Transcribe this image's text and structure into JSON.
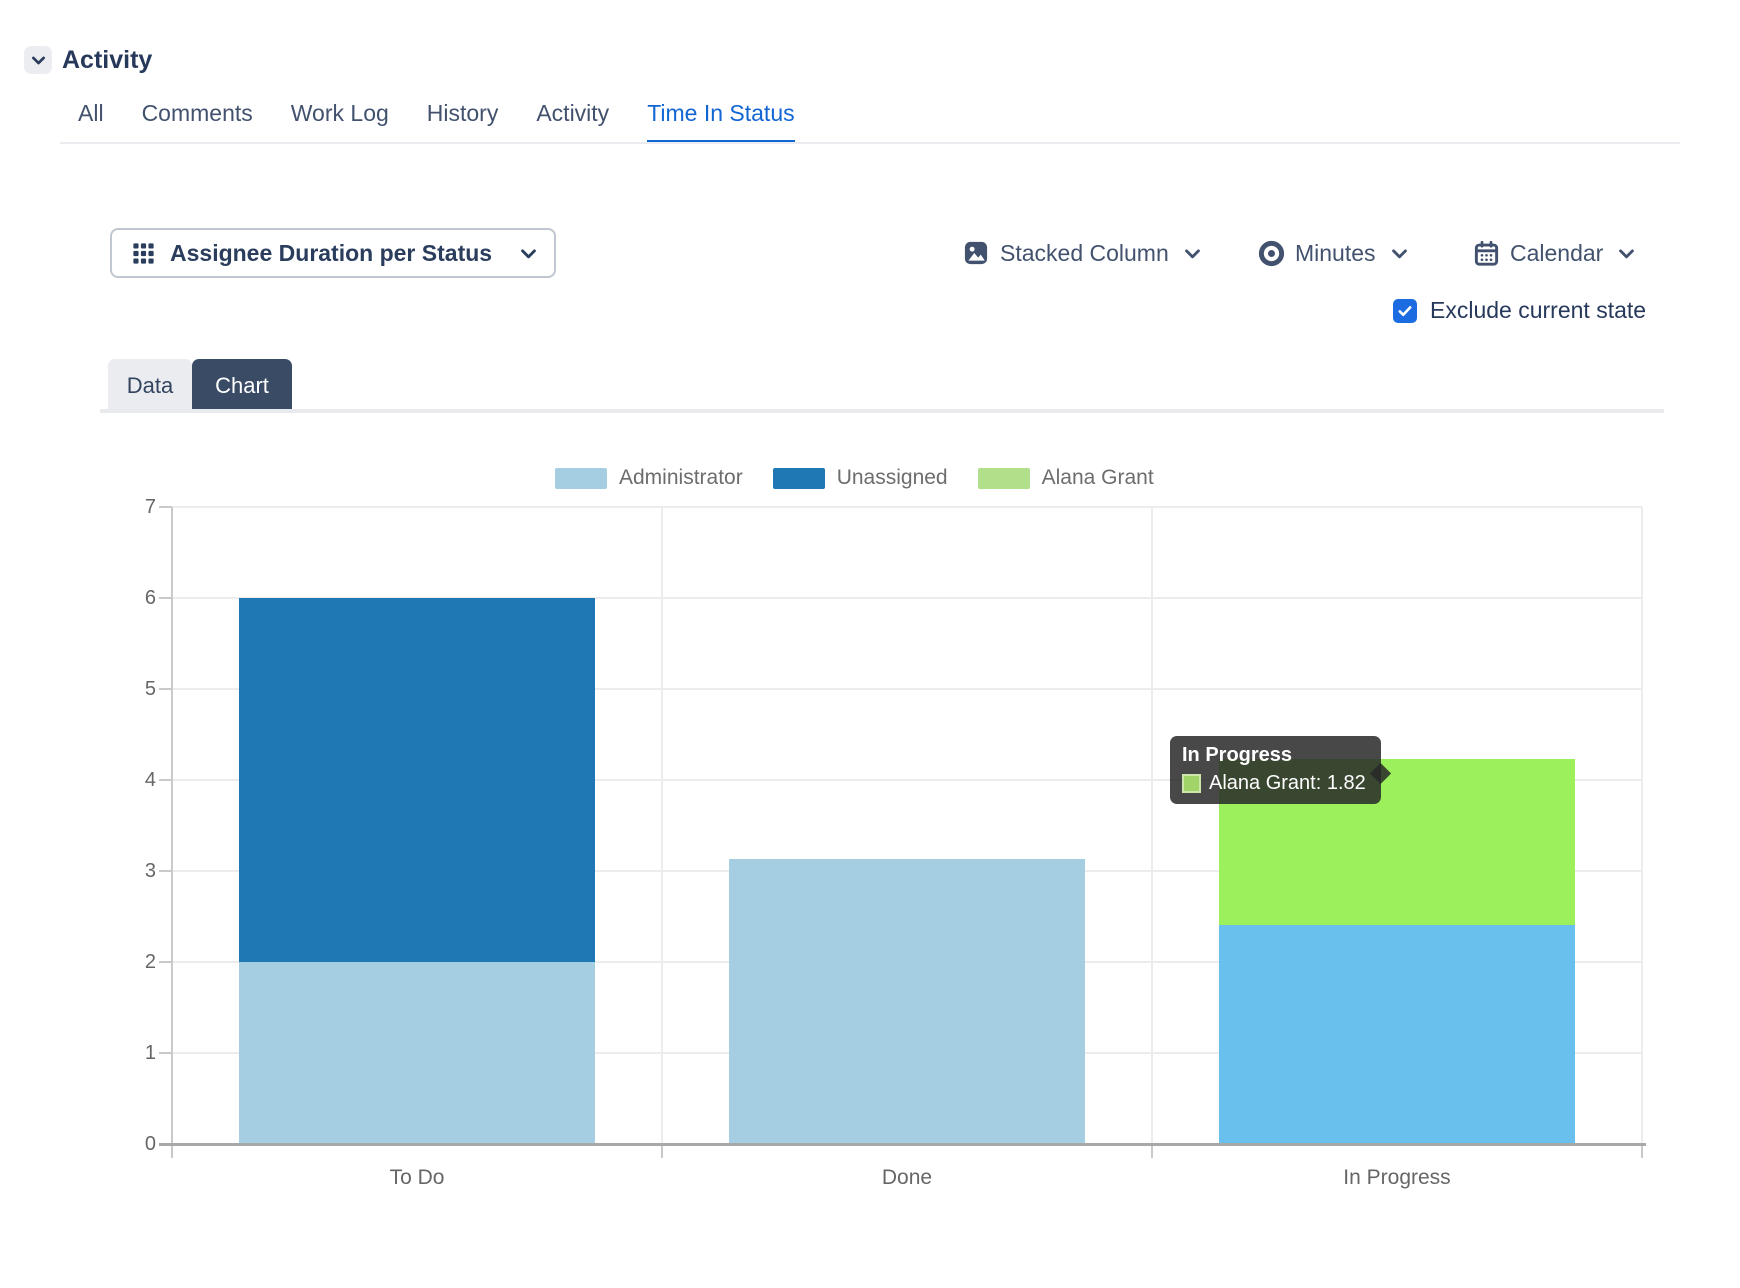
{
  "header": {
    "title": "Activity"
  },
  "activity_tabs": {
    "items": [
      "All",
      "Comments",
      "Work Log",
      "History",
      "Activity",
      "Time In Status"
    ],
    "active": "Time In Status"
  },
  "toolbar": {
    "report_dropdown": {
      "label": "Assignee Duration per Status",
      "icon": "grid-icon"
    },
    "chart_type_dropdown": {
      "label": "Stacked Column",
      "icon": "image-icon"
    },
    "unit_dropdown": {
      "label": "Minutes",
      "icon": "eye-icon"
    },
    "calendar_dropdown": {
      "label": "Calendar",
      "icon": "calendar-icon"
    },
    "exclude_current_state": {
      "label": "Exclude current state",
      "checked": true
    }
  },
  "view_tabs": {
    "items": [
      "Data",
      "Chart"
    ],
    "active": "Chart"
  },
  "colors": {
    "accent_blue": "#1266d3",
    "checkbox_blue": "#1b6ce0",
    "text_navy": "#27395b",
    "text_slate": "#42526e",
    "active_view_tab_bg": "#3a4b66",
    "inactive_view_tab_bg": "#ebecf0",
    "gridline": "#ececec",
    "axis_line": "#c9c9c9",
    "baseline": "#a8a8a8",
    "axis_text": "#666666"
  },
  "chart_data": {
    "type": "bar",
    "stacked": true,
    "grid": true,
    "legend_position": "top-center",
    "categories": [
      "To Do",
      "Done",
      "In Progress"
    ],
    "ylim": [
      0,
      7
    ],
    "yticks": [
      0,
      1,
      2,
      3,
      4,
      5,
      6,
      7
    ],
    "legend": [
      {
        "label": "Administrator",
        "color": "#a6cee3"
      },
      {
        "label": "Unassigned",
        "color": "#1f78b4"
      },
      {
        "label": "Alana Grant",
        "color": "#b2df8a"
      }
    ],
    "bars": [
      {
        "category": "To Do",
        "segments": [
          {
            "name": "Administrator",
            "value": 2.0,
            "color": "#a6cee3"
          },
          {
            "name": "Unassigned",
            "value": 4.0,
            "color": "#1f78b4"
          }
        ]
      },
      {
        "category": "Done",
        "segments": [
          {
            "name": "Administrator",
            "value": 3.13,
            "color": "#a6cee3"
          }
        ]
      },
      {
        "category": "In Progress",
        "segments": [
          {
            "name": "Administrator",
            "value": 2.41,
            "color": "#69c0ec"
          },
          {
            "name": "Alana Grant",
            "value": 1.82,
            "color": "#9cf05c"
          }
        ]
      }
    ],
    "tooltip": {
      "title": "In Progress",
      "text": "Alana Grant: 1.82",
      "swatch_color": "#a0d468"
    }
  }
}
